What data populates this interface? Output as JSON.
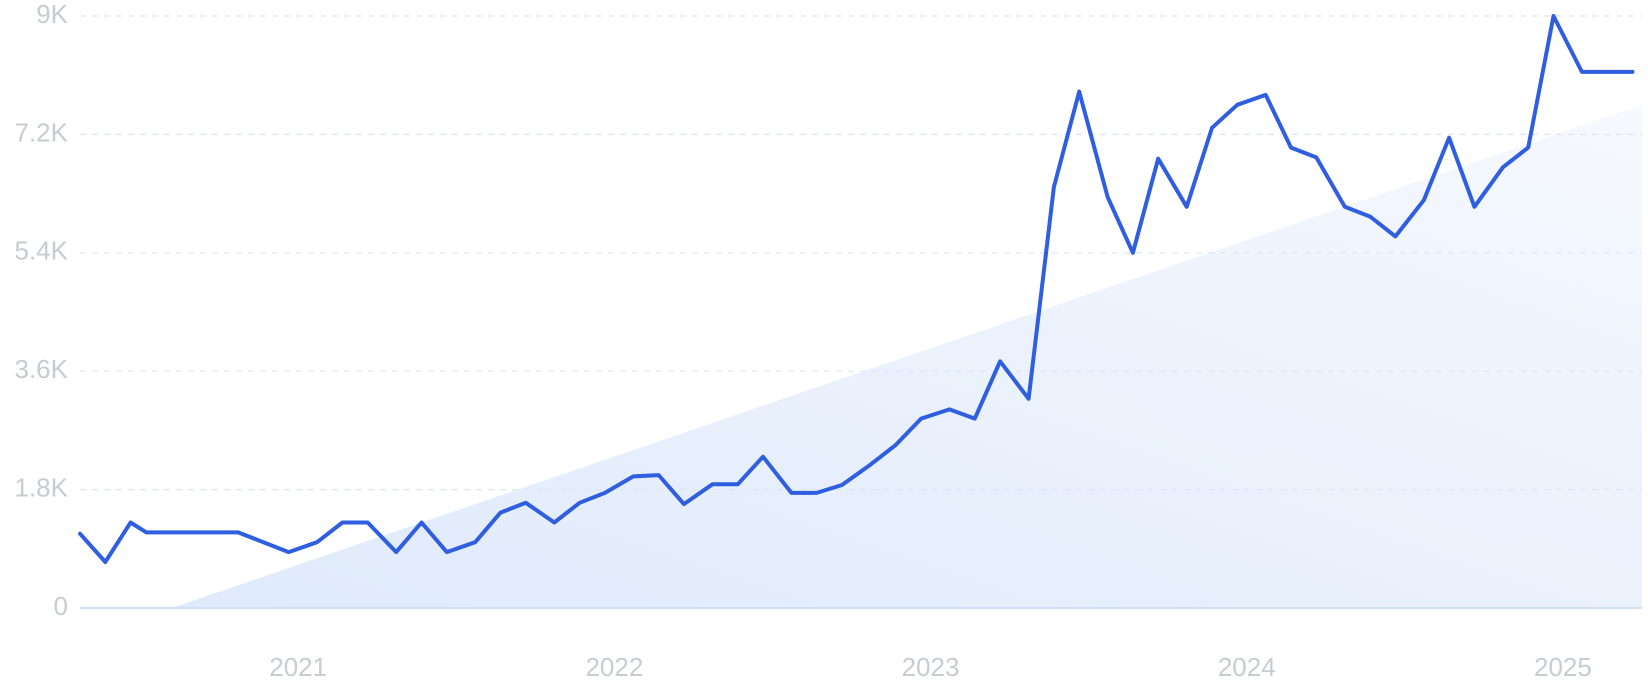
{
  "chart_data": {
    "type": "line",
    "title": "",
    "xlabel": "",
    "ylabel": "",
    "xlim": [
      2020.31,
      2025.25
    ],
    "ylim": [
      0,
      9000
    ],
    "grid": true,
    "legend": "none",
    "y_ticks": [
      {
        "value": 0,
        "label": "0"
      },
      {
        "value": 1800,
        "label": "1.8K"
      },
      {
        "value": 3600,
        "label": "3.6K"
      },
      {
        "value": 5400,
        "label": "5.4K"
      },
      {
        "value": 7200,
        "label": "7.2K"
      },
      {
        "value": 9000,
        "label": "9K"
      }
    ],
    "x_ticks": [
      {
        "value": 2021,
        "label": "2021"
      },
      {
        "value": 2022,
        "label": "2022"
      },
      {
        "value": 2023,
        "label": "2023"
      },
      {
        "value": 2024,
        "label": "2024"
      },
      {
        "value": 2025,
        "label": "2025"
      }
    ],
    "colors": {
      "line": "#2f5fe0",
      "trend_fill_start": "#dfeafb",
      "trend_fill_end": "#f6f9fe",
      "grid": "#dbe5f5",
      "baseline": "#cfe0f4",
      "tick_text": "#c8cbd2"
    },
    "trend": {
      "x": [
        2020.6,
        2025.25
      ],
      "values": [
        0,
        7650
      ]
    },
    "series": [
      {
        "x": [
          2020.31,
          2020.39,
          2020.47,
          2020.52,
          2020.56,
          2020.64,
          2020.72,
          2020.81,
          2020.89,
          2020.97,
          2021.06,
          2021.14,
          2021.22,
          2021.31,
          2021.39,
          2021.47,
          2021.56,
          2021.64,
          2021.72,
          2021.81,
          2021.89,
          2021.97,
          2022.06,
          2022.14,
          2022.22,
          2022.31,
          2022.39,
          2022.47,
          2022.56,
          2022.64,
          2022.72,
          2022.81,
          2022.89,
          2022.97,
          2023.06,
          2023.14,
          2023.22,
          2023.31,
          2023.39,
          2023.47,
          2023.56,
          2023.64,
          2023.72,
          2023.81,
          2023.89,
          2023.97,
          2024.06,
          2024.14,
          2024.22,
          2024.31,
          2024.39,
          2024.47,
          2024.56,
          2024.64,
          2024.72,
          2024.81,
          2024.89,
          2024.97,
          2025.06,
          2025.13,
          2025.22
        ],
        "values": [
          1130,
          700,
          1300,
          1150,
          1150,
          1150,
          1150,
          1150,
          1000,
          850,
          1000,
          1300,
          1300,
          850,
          1300,
          850,
          1000,
          1450,
          1600,
          1300,
          1600,
          1750,
          2000,
          2020,
          1580,
          1880,
          1880,
          2300,
          1750,
          1750,
          1870,
          2180,
          2480,
          2880,
          3020,
          2880,
          3750,
          3180,
          6400,
          7850,
          6250,
          5400,
          6830,
          6100,
          7300,
          7650,
          7800,
          7000,
          6850,
          6100,
          5950,
          5650,
          6200,
          7150,
          6100,
          6700,
          7000,
          9000,
          8150,
          8150,
          8150
        ]
      }
    ]
  }
}
